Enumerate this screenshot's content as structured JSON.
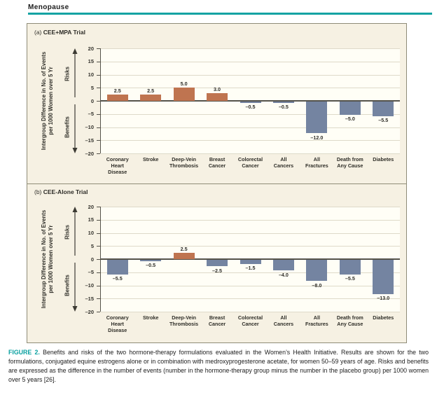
{
  "page": {
    "header": "Menopause"
  },
  "caption": {
    "label": "FIGURE 2.",
    "text": " Benefits and risks of the two hormone-therapy formulations evaluated in the Women’s Health Initiative. Results are shown for the two formulations, conjugated equine estrogens alone or in combination with medroxyprogesterone acetate, for women 50–59 years of age. Risks and benefits are expressed as the difference in the number of events (number in the hormone-therapy group minus the number in the placebo group) per 1000 women over 5 years [26]."
  },
  "chart_data": [
    {
      "type": "bar",
      "title_prefix": "(a) ",
      "title": "CEE+MPA Trial",
      "ylabel_line1": "Intergroup Difference in No. of Events",
      "ylabel_line2": "per 1000 Women over 5 Yr",
      "risks_label": "Risks",
      "benefits_label": "Benefits",
      "ylim": [
        -20,
        20
      ],
      "yticks": [
        20,
        15,
        10,
        5,
        0,
        -5,
        -10,
        -15,
        -20
      ],
      "ytick_labels": [
        "20",
        "15",
        "10",
        "5",
        "0",
        "–5",
        "–10",
        "–15",
        "–20"
      ],
      "grid": true,
      "categories": [
        [
          "Coronary",
          "Heart",
          "Disease"
        ],
        [
          "Stroke"
        ],
        [
          "Deep-Vein",
          "Thrombosis"
        ],
        [
          "Breast",
          "Cancer"
        ],
        [
          "Colorectal",
          "Cancer"
        ],
        [
          "All",
          "Cancers"
        ],
        [
          "All",
          "Fractures"
        ],
        [
          "Death from",
          "Any Cause"
        ],
        [
          "Diabetes"
        ]
      ],
      "values": [
        2.5,
        2.5,
        5.0,
        3.0,
        -0.5,
        -0.5,
        -12.0,
        -5.0,
        -5.5
      ],
      "value_labels": [
        "2.5",
        "2.5",
        "5.0",
        "3.0",
        "–0.5",
        "–0.5",
        "–12.0",
        "–5.0",
        "–5.5"
      ],
      "colors": {
        "positive": "#bf7450",
        "negative": "#7484a1"
      }
    },
    {
      "type": "bar",
      "title_prefix": "(b) ",
      "title": "CEE-Alone Trial",
      "ylabel_line1": "Intergroup Difference in No. of Events",
      "ylabel_line2": "per 1000 Women over 5 Yr",
      "risks_label": "Risks",
      "benefits_label": "Benefits",
      "ylim": [
        -20,
        20
      ],
      "yticks": [
        20,
        15,
        10,
        5,
        0,
        -5,
        -10,
        -15,
        -20
      ],
      "ytick_labels": [
        "20",
        "15",
        "10",
        "5",
        "0",
        "–5",
        "–10",
        "–15",
        "–20"
      ],
      "grid": true,
      "categories": [
        [
          "Coronary",
          "Heart",
          "Disease"
        ],
        [
          "Stroke"
        ],
        [
          "Deep-Vein",
          "Thrombosis"
        ],
        [
          "Breast",
          "Cancer"
        ],
        [
          "Colorectal",
          "Cancer"
        ],
        [
          "All",
          "Cancers"
        ],
        [
          "All",
          "Fractures"
        ],
        [
          "Death from",
          "Any Cause"
        ],
        [
          "Diabetes"
        ]
      ],
      "values": [
        -5.5,
        -0.5,
        2.5,
        -2.5,
        -1.5,
        -4.0,
        -8.0,
        -5.5,
        -13.0
      ],
      "value_labels": [
        "–5.5",
        "–0.5",
        "2.5",
        "–2.5",
        "–1.5",
        "–4.0",
        "–8.0",
        "–5.5",
        "–13.0"
      ],
      "colors": {
        "positive": "#bf7450",
        "negative": "#7484a1"
      }
    }
  ]
}
